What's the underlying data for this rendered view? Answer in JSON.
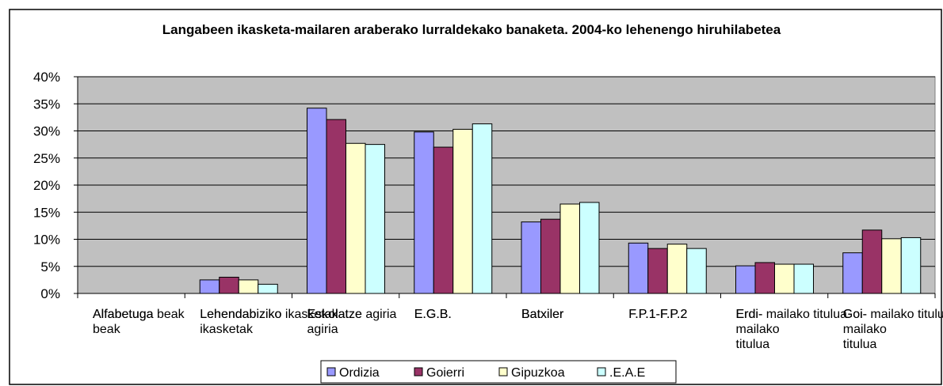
{
  "chart_data": {
    "type": "bar",
    "title": "Langabeen ikasketa-mailaren araberako lurraldekako banaketa. 2004-ko lehenengo hiruhilabetea",
    "categories": [
      "Alfabetuga\nbeak",
      "Lehendabiziko\nikasketak",
      "Eskolatze\nagiria",
      "E.G.B.",
      "Batxiler",
      "F.P.1-F.P.2",
      "Erdi-\nmailako\ntitulua",
      "Goi-\nmailako\ntitulua"
    ],
    "series": [
      {
        "name": "Ordizia",
        "color": "#9999ff",
        "values": [
          0,
          2.5,
          34.2,
          29.8,
          13.2,
          9.3,
          5.1,
          7.5
        ]
      },
      {
        "name": "Goierri",
        "color": "#993366",
        "values": [
          0,
          3.0,
          32.1,
          27.0,
          13.7,
          8.3,
          5.7,
          11.7
        ]
      },
      {
        "name": "Gipuzkoa",
        "color": "#ffffcc",
        "values": [
          0,
          2.5,
          27.7,
          30.3,
          16.5,
          9.1,
          5.4,
          10.1
        ]
      },
      {
        "name": ".E.A.E",
        "color": "#ccffff",
        "values": [
          0,
          1.7,
          27.5,
          31.3,
          16.8,
          8.3,
          5.4,
          10.3
        ]
      }
    ],
    "ylim": [
      0,
      40
    ],
    "yticks": [
      {
        "value": 0,
        "label": "0%"
      },
      {
        "value": 5,
        "label": "5%"
      },
      {
        "value": 10,
        "label": "10%"
      },
      {
        "value": 15,
        "label": "15%"
      },
      {
        "value": 20,
        "label": "20%"
      },
      {
        "value": 25,
        "label": "25%"
      },
      {
        "value": 30,
        "label": "30%"
      },
      {
        "value": 35,
        "label": "35%"
      },
      {
        "value": 40,
        "label": "40%"
      }
    ],
    "grid": true,
    "legend": "bottom"
  }
}
